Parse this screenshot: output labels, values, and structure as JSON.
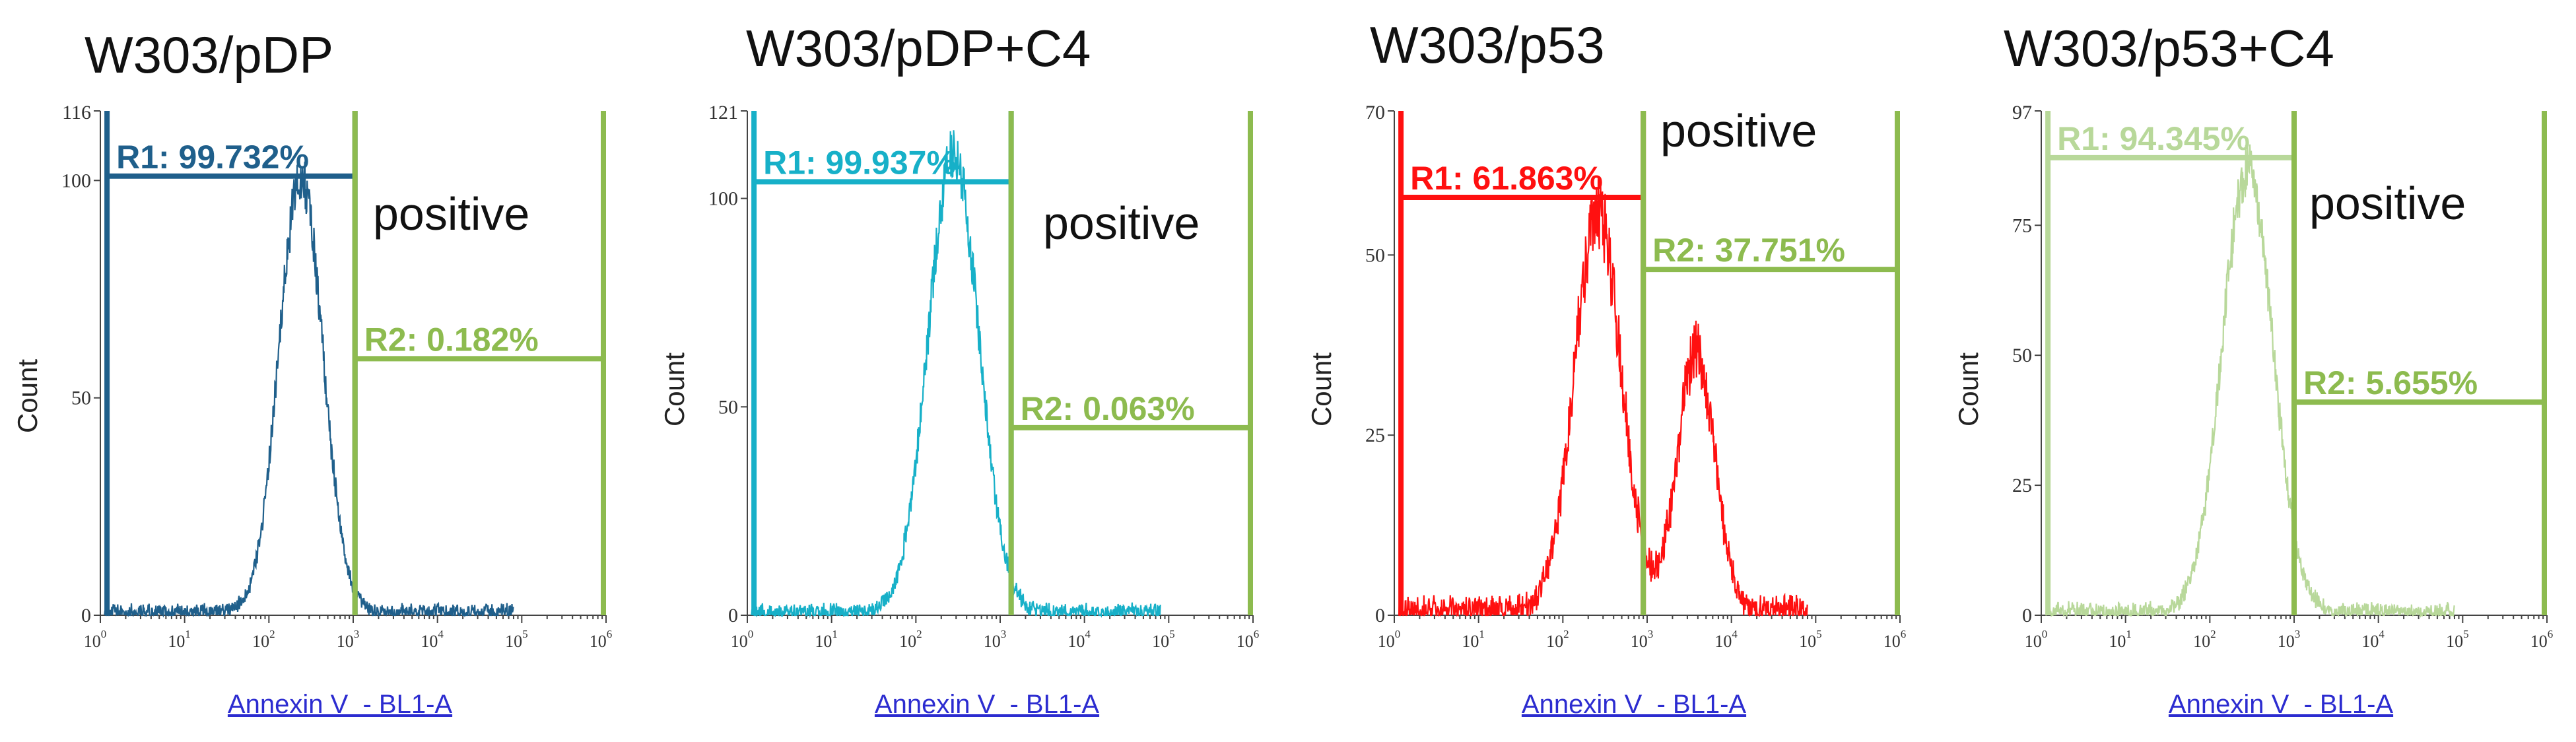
{
  "chart_data": [
    {
      "type": "histogram",
      "title": "W303/pDP",
      "ylabel": "Count",
      "xlabel": "Annexin V  - BL1-A",
      "xscale": "log",
      "xlim": [
        1,
        1000000
      ],
      "ylim": [
        0,
        116
      ],
      "yticks": [
        0,
        50,
        100
      ],
      "ymax_label": "116",
      "color": "#1f5f8b",
      "distribution": [
        {
          "center": 240,
          "width_log": 0.26,
          "peak": 100
        }
      ],
      "noise": 9,
      "gates": [
        {
          "name": "R1",
          "label": "R1: 99.732%",
          "x_range": [
            1.2,
            1050
          ],
          "level": 101,
          "color": "#1f5f8b"
        },
        {
          "name": "R2",
          "label": "R2: 0.182%",
          "x_range": [
            1050,
            1000000
          ],
          "level": 59,
          "color": "#8dbb4f"
        }
      ],
      "annotation": "positive"
    },
    {
      "type": "histogram",
      "title": "W303/pDP+C4",
      "ylabel": "Count",
      "xlabel": "Annexin V  - BL1-A",
      "xscale": "log",
      "xlim": [
        1,
        1000000
      ],
      "ylim": [
        0,
        121
      ],
      "yticks": [
        0,
        50,
        100
      ],
      "ymax_label": "121",
      "color": "#17b0c8",
      "distribution": [
        {
          "center": 280,
          "width_log": 0.3,
          "peak": 110
        }
      ],
      "noise": 10,
      "gates": [
        {
          "name": "R1",
          "label": "R1: 99.937%",
          "x_range": [
            1.2,
            1350
          ],
          "level": 104,
          "color": "#17b0c8"
        },
        {
          "name": "R2",
          "label": "R2: 0.063%",
          "x_range": [
            1350,
            1000000
          ],
          "level": 45,
          "color": "#8dbb4f"
        }
      ],
      "annotation": "positive"
    },
    {
      "type": "histogram",
      "title": "W303/p53",
      "ylabel": "Count",
      "xlabel": "Annexin V  - BL1-A",
      "xscale": "log",
      "xlim": [
        1,
        1000000
      ],
      "ylim": [
        0,
        70
      ],
      "yticks": [
        0,
        25,
        50
      ],
      "ymax_label": "70",
      "color": "#ff1010",
      "distribution": [
        {
          "center": 260,
          "width_log": 0.28,
          "peak": 55
        },
        {
          "center": 3800,
          "width_log": 0.22,
          "peak": 36
        }
      ],
      "noise": 9,
      "gates": [
        {
          "name": "R1",
          "label": "R1: 61.863%",
          "x_range": [
            1.2,
            900
          ],
          "level": 58,
          "color": "#ff1010"
        },
        {
          "name": "R2",
          "label": "R2: 37.751%",
          "x_range": [
            900,
            1000000
          ],
          "level": 48,
          "color": "#8dbb4f"
        }
      ],
      "annotation": "positive"
    },
    {
      "type": "histogram",
      "title": "W303/p53+C4",
      "ylabel": "Count",
      "xlabel": "Annexin V  - BL1-A",
      "xscale": "log",
      "xlim": [
        1,
        1000000
      ],
      "ylim": [
        0,
        97
      ],
      "yticks": [
        0,
        25,
        50,
        75
      ],
      "ymax_label": "97",
      "color": "#b8d89a",
      "distribution": [
        {
          "center": 280,
          "width_log": 0.3,
          "peak": 85
        }
      ],
      "noise": 8,
      "gates": [
        {
          "name": "R1",
          "label": "R1: 94.345%",
          "x_range": [
            1.2,
            1000
          ],
          "level": 88,
          "color": "#b8d89a"
        },
        {
          "name": "R2",
          "label": "R2: 5.655%",
          "x_range": [
            1000,
            1000000
          ],
          "level": 41,
          "color": "#8dbb4f"
        }
      ],
      "annotation": "positive"
    }
  ]
}
